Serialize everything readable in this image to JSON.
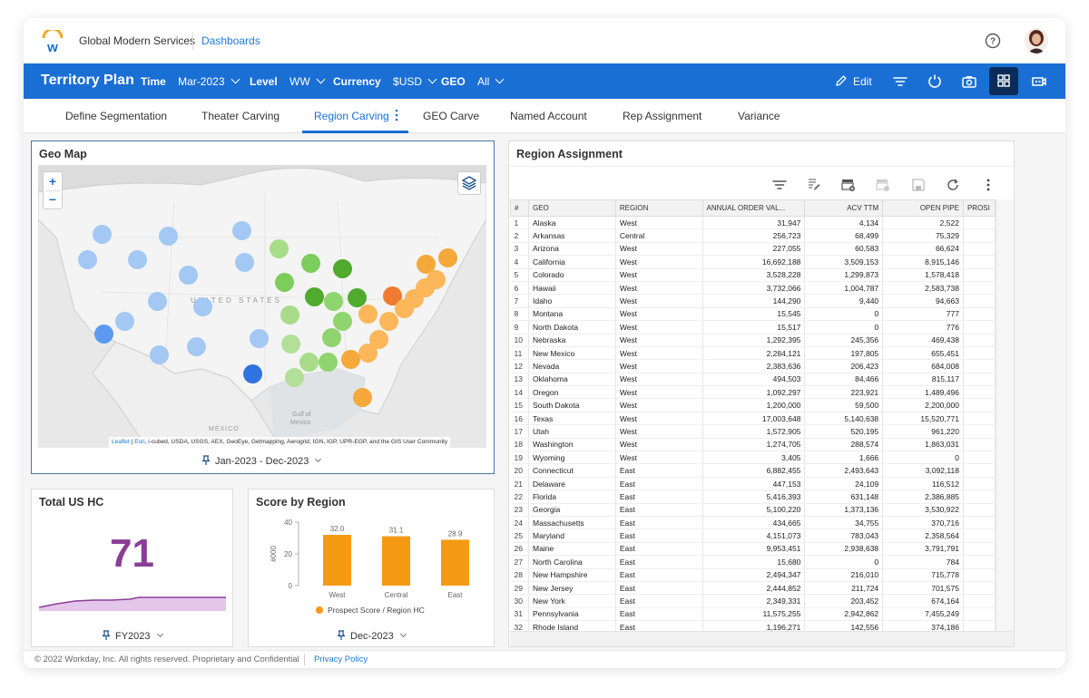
{
  "header": {
    "company": "Global Modern Services",
    "dashboards_link": "Dashboards",
    "help_icon": "help-circle-icon",
    "avatar_icon": "user-avatar"
  },
  "toolbar": {
    "title": "Territory Plan",
    "filters": [
      {
        "label": "Time",
        "value": "Mar-2023"
      },
      {
        "label": "Level",
        "value": "WW"
      },
      {
        "label": "Currency",
        "value": "$USD"
      },
      {
        "label": "GEO",
        "value": "All"
      }
    ],
    "edit_label": "Edit",
    "icons": [
      "pencil-icon",
      "filter-icon",
      "refresh-icon",
      "camera-icon",
      "grid-view-icon",
      "presentation-icon"
    ]
  },
  "tabs": [
    {
      "label": "Define Segmentation"
    },
    {
      "label": "Theater Carving"
    },
    {
      "label": "Region Carving",
      "active": true
    },
    {
      "label": "GEO Carve"
    },
    {
      "label": "Named Account"
    },
    {
      "label": "Rep Assignment"
    },
    {
      "label": "Variance"
    }
  ],
  "geo_map": {
    "title": "Geo Map",
    "zoom_in": "+",
    "zoom_out": "−",
    "country_label": "UNITED STATES",
    "gulf_label_1": "Gulf of",
    "gulf_label_2": "Mexico",
    "mexico_label": "MÉXICO",
    "attribution_links": [
      "Leaflet",
      "Esri"
    ],
    "attribution": ", i-cubed, USDA, USGS, AEX, GeoEye, Getmapping, Aerogrid, IGN, IGP, UPR-EGP, and the GIS User Community",
    "date_filter": "Jan-2023 - Dec-2023"
  },
  "total_hc": {
    "title": "Total US HC",
    "value": "71",
    "period": "FY2023",
    "accent": "#8a3f97"
  },
  "score_by_region": {
    "title": "Score by Region",
    "period": "Dec-2023",
    "legend": "Prospect Score / Region HC"
  },
  "chart_data": {
    "type": "bar",
    "title": "Score by Region",
    "categories": [
      "West",
      "Central",
      "East"
    ],
    "values": [
      32.0,
      31.1,
      28.9
    ],
    "data_labels": [
      "32.0",
      "31.1",
      "28.9"
    ],
    "ylabel": "#000",
    "ylim": [
      0,
      40
    ],
    "yticks": [
      "0",
      "20",
      "40"
    ],
    "series": [
      {
        "name": "Prospect Score / Region HC",
        "color": "#f59a13",
        "values": [
          32.0,
          31.1,
          28.9
        ]
      }
    ],
    "legend_position": "bottom"
  },
  "region_assignment": {
    "title": "Region Assignment",
    "toolbar_icons": [
      "filter-icon",
      "edit-rows-icon",
      "add-view-icon",
      "remove-view-icon",
      "save-icon",
      "refresh-icon",
      "more-icon"
    ],
    "columns": [
      "#",
      "GEO",
      "REGION",
      "ANNUAL ORDER VAL...",
      "ACV TTM",
      "OPEN PIPE",
      "PROSI"
    ],
    "rows": [
      [
        "1",
        "Alaska",
        "West",
        "31,947",
        "4,134",
        "2,522"
      ],
      [
        "2",
        "Arkansas",
        "Central",
        "256,723",
        "68,499",
        "75,329"
      ],
      [
        "3",
        "Arizona",
        "West",
        "227,055",
        "60,583",
        "66,624"
      ],
      [
        "4",
        "California",
        "West",
        "16,692,188",
        "3,509,153",
        "8,915,146"
      ],
      [
        "5",
        "Colorado",
        "West",
        "3,528,228",
        "1,299,873",
        "1,578,418"
      ],
      [
        "6",
        "Hawaii",
        "West",
        "3,732,066",
        "1,004,787",
        "2,583,738"
      ],
      [
        "7",
        "Idaho",
        "West",
        "144,290",
        "9,440",
        "94,663"
      ],
      [
        "8",
        "Montana",
        "West",
        "15,545",
        "0",
        "777"
      ],
      [
        "9",
        "North Dakota",
        "West",
        "15,517",
        "0",
        "776"
      ],
      [
        "10",
        "Nebraska",
        "West",
        "1,292,395",
        "245,356",
        "469,438"
      ],
      [
        "11",
        "New Mexico",
        "West",
        "2,284,121",
        "197,805",
        "655,451"
      ],
      [
        "12",
        "Nevada",
        "West",
        "2,383,636",
        "206,423",
        "684,008"
      ],
      [
        "13",
        "Oklahoma",
        "West",
        "494,503",
        "84,466",
        "815,117"
      ],
      [
        "14",
        "Oregon",
        "West",
        "1,092,297",
        "223,921",
        "1,489,496"
      ],
      [
        "15",
        "South Dakota",
        "West",
        "1,200,000",
        "59,500",
        "2,200,000"
      ],
      [
        "16",
        "Texas",
        "West",
        "17,003,648",
        "5,140,638",
        "15,520,771"
      ],
      [
        "17",
        "Utah",
        "West",
        "1,572,905",
        "520,195",
        "961,220"
      ],
      [
        "18",
        "Washington",
        "West",
        "1,274,705",
        "288,574",
        "1,863,031"
      ],
      [
        "19",
        "Wyoming",
        "West",
        "3,405",
        "1,666",
        "0"
      ],
      [
        "20",
        "Connecticut",
        "East",
        "6,882,455",
        "2,493,643",
        "3,092,118"
      ],
      [
        "21",
        "Delaware",
        "East",
        "447,153",
        "24,109",
        "116,512"
      ],
      [
        "22",
        "Florida",
        "East",
        "5,416,393",
        "631,148",
        "2,386,885"
      ],
      [
        "23",
        "Georgia",
        "East",
        "5,100,220",
        "1,373,136",
        "3,530,922"
      ],
      [
        "24",
        "Massachusetts",
        "East",
        "434,665",
        "34,755",
        "370,716"
      ],
      [
        "25",
        "Maryland",
        "East",
        "4,151,073",
        "783,043",
        "2,358,564"
      ],
      [
        "26",
        "Maine",
        "East",
        "9,953,451",
        "2,938,638",
        "3,791,791"
      ],
      [
        "27",
        "North Carolina",
        "East",
        "15,680",
        "0",
        "784"
      ],
      [
        "28",
        "New Hampshire",
        "East",
        "2,494,347",
        "216,010",
        "715,778"
      ],
      [
        "29",
        "New Jersey",
        "East",
        "2,444,852",
        "211,724",
        "701,575"
      ],
      [
        "30",
        "New York",
        "East",
        "2,349,331",
        "203,452",
        "674,164"
      ],
      [
        "31",
        "Pennsylvania",
        "East",
        "11,575,255",
        "2,942,862",
        "7,455,249"
      ],
      [
        "32",
        "Rhode Island",
        "East",
        "1,196,271",
        "142,556",
        "374,186"
      ]
    ]
  },
  "footer": {
    "copyright": "© 2022 Workday, Inc. All rights reserved. Proprietary and Confidential",
    "privacy_link": "Privacy Policy"
  }
}
